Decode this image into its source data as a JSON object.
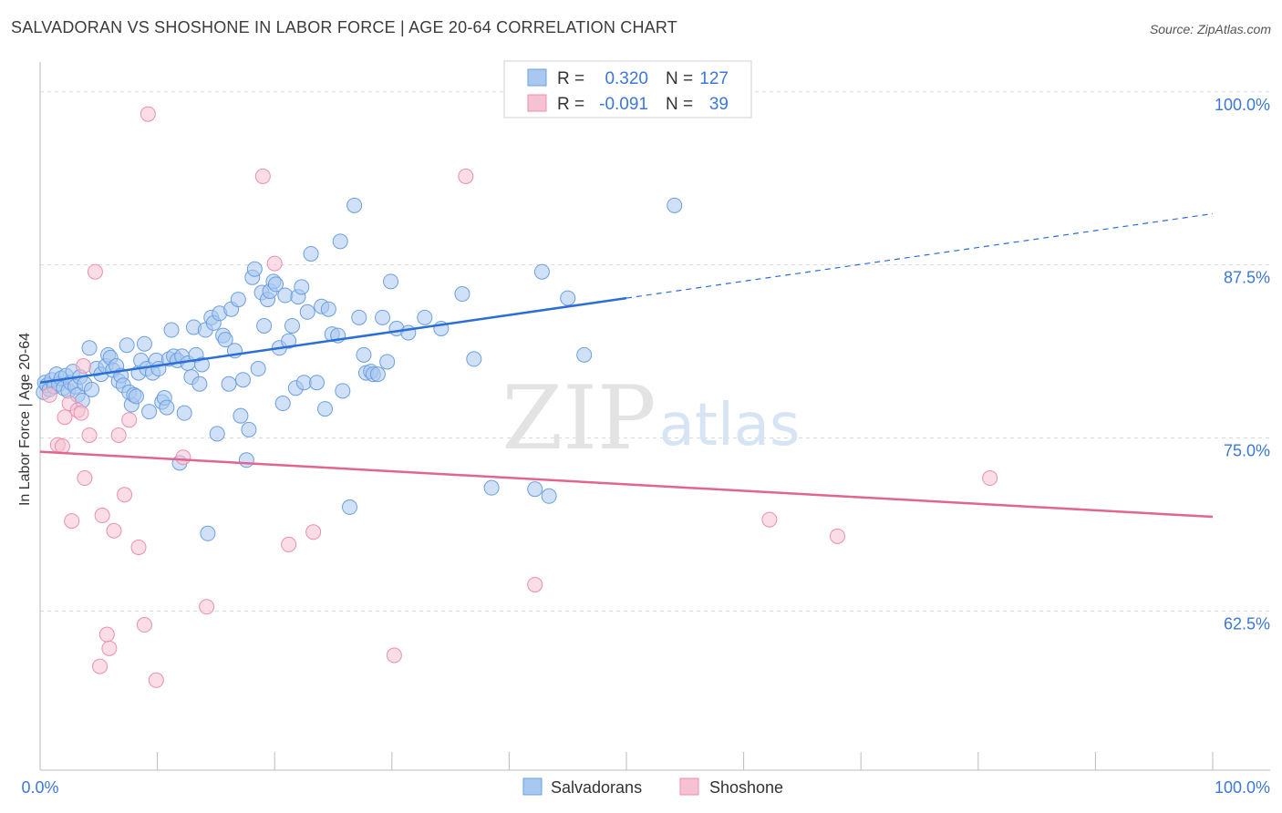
{
  "title": "SALVADORAN VS SHOSHONE IN LABOR FORCE | AGE 20-64 CORRELATION CHART",
  "source": "Source: ZipAtlas.com",
  "watermark": {
    "zip": "ZIP",
    "atlas": "atlas"
  },
  "colors": {
    "blue_fill": "#a9c8f0",
    "blue_stroke": "#6b9fe0",
    "blue_line": "#2a6ed6",
    "pink_fill": "#f6c1d2",
    "pink_stroke": "#ec8fad",
    "pink_line": "#e0658f",
    "tick_label": "#3b78d8",
    "grid": "#d9d9d9"
  },
  "legend_top": [
    {
      "r_label": "R =",
      "r_value": "0.320",
      "n_label": "N =",
      "n_value": "127"
    },
    {
      "r_label": "R =",
      "r_value": "-0.091",
      "n_label": "N =",
      "n_value": "39"
    }
  ],
  "chart_data": {
    "type": "scatter",
    "title": "SALVADORAN VS SHOSHONE IN LABOR FORCE | AGE 20-64 CORRELATION CHART",
    "xlabel": "",
    "ylabel": "In Labor Force | Age 20-64",
    "xlim": [
      0,
      100
    ],
    "ylim": [
      51,
      101.5
    ],
    "x_tick_labels": [
      "0.0%",
      "100.0%"
    ],
    "y_ticks": [
      62.5,
      75.0,
      87.5,
      100.0
    ],
    "y_tick_labels": [
      "62.5%",
      "75.0%",
      "87.5%",
      "100.0%"
    ],
    "grid": true,
    "legend_position": "bottom-center",
    "series": [
      {
        "name": "Salvadorans",
        "color": "#a9c8f0",
        "trend": {
          "x": [
            0,
            50
          ],
          "y": [
            79.0,
            85.1
          ],
          "dashed_to": [
            100,
            91.2
          ]
        },
        "points": [
          [
            0.3,
            78.3
          ],
          [
            0.4,
            79.0
          ],
          [
            0.6,
            78.8
          ],
          [
            0.8,
            78.5
          ],
          [
            1.0,
            79.2
          ],
          [
            1.2,
            78.7
          ],
          [
            1.4,
            79.6
          ],
          [
            1.6,
            78.9
          ],
          [
            1.8,
            79.3
          ],
          [
            2.0,
            78.6
          ],
          [
            2.2,
            79.5
          ],
          [
            2.4,
            78.4
          ],
          [
            2.6,
            79.0
          ],
          [
            2.8,
            79.8
          ],
          [
            3.0,
            78.7
          ],
          [
            3.2,
            78.1
          ],
          [
            3.4,
            79.4
          ],
          [
            3.6,
            77.7
          ],
          [
            3.8,
            78.9
          ],
          [
            4.2,
            81.5
          ],
          [
            4.4,
            78.5
          ],
          [
            4.8,
            80.0
          ],
          [
            5.2,
            79.6
          ],
          [
            5.6,
            80.2
          ],
          [
            5.8,
            81.0
          ],
          [
            6.0,
            80.8
          ],
          [
            6.2,
            79.9
          ],
          [
            6.5,
            80.2
          ],
          [
            6.7,
            79.1
          ],
          [
            6.9,
            79.5
          ],
          [
            7.1,
            78.8
          ],
          [
            7.4,
            81.7
          ],
          [
            7.6,
            78.3
          ],
          [
            7.8,
            77.4
          ],
          [
            8.0,
            78.1
          ],
          [
            8.2,
            78.0
          ],
          [
            8.4,
            79.7
          ],
          [
            8.6,
            80.6
          ],
          [
            8.9,
            81.8
          ],
          [
            9.1,
            80.0
          ],
          [
            9.3,
            76.9
          ],
          [
            9.6,
            79.7
          ],
          [
            9.9,
            80.6
          ],
          [
            10.1,
            80.0
          ],
          [
            10.4,
            77.6
          ],
          [
            10.6,
            77.9
          ],
          [
            10.8,
            77.2
          ],
          [
            11.0,
            80.7
          ],
          [
            11.2,
            82.8
          ],
          [
            11.4,
            80.9
          ],
          [
            11.7,
            80.6
          ],
          [
            11.9,
            73.2
          ],
          [
            12.1,
            80.9
          ],
          [
            12.3,
            76.8
          ],
          [
            12.6,
            80.4
          ],
          [
            12.9,
            79.4
          ],
          [
            13.1,
            83.0
          ],
          [
            13.3,
            81.0
          ],
          [
            13.6,
            78.9
          ],
          [
            13.8,
            80.3
          ],
          [
            14.1,
            82.8
          ],
          [
            14.3,
            68.1
          ],
          [
            14.6,
            83.7
          ],
          [
            14.8,
            83.3
          ],
          [
            15.1,
            75.3
          ],
          [
            15.3,
            84.0
          ],
          [
            15.6,
            82.4
          ],
          [
            15.8,
            82.1
          ],
          [
            16.1,
            78.9
          ],
          [
            16.3,
            84.3
          ],
          [
            16.6,
            81.3
          ],
          [
            16.9,
            85.0
          ],
          [
            17.1,
            76.6
          ],
          [
            17.3,
            79.2
          ],
          [
            17.6,
            73.4
          ],
          [
            17.8,
            75.6
          ],
          [
            18.1,
            86.6
          ],
          [
            18.3,
            87.2
          ],
          [
            18.6,
            80.0
          ],
          [
            18.9,
            85.5
          ],
          [
            19.1,
            83.1
          ],
          [
            19.4,
            85.0
          ],
          [
            19.6,
            85.6
          ],
          [
            19.9,
            86.3
          ],
          [
            20.1,
            86.1
          ],
          [
            20.4,
            81.5
          ],
          [
            20.7,
            77.5
          ],
          [
            20.9,
            85.3
          ],
          [
            21.2,
            82.0
          ],
          [
            21.5,
            83.1
          ],
          [
            21.8,
            78.6
          ],
          [
            22.0,
            85.2
          ],
          [
            22.3,
            85.9
          ],
          [
            22.5,
            79.0
          ],
          [
            22.8,
            84.1
          ],
          [
            23.1,
            88.3
          ],
          [
            23.6,
            79.0
          ],
          [
            24.0,
            84.5
          ],
          [
            24.3,
            77.1
          ],
          [
            24.6,
            84.3
          ],
          [
            24.9,
            82.5
          ],
          [
            25.4,
            82.4
          ],
          [
            25.6,
            89.2
          ],
          [
            25.8,
            78.4
          ],
          [
            26.4,
            70.0
          ],
          [
            26.8,
            91.8
          ],
          [
            27.2,
            83.7
          ],
          [
            27.6,
            81.0
          ],
          [
            27.8,
            79.7
          ],
          [
            28.2,
            79.8
          ],
          [
            28.4,
            79.6
          ],
          [
            28.8,
            79.6
          ],
          [
            29.2,
            83.7
          ],
          [
            29.6,
            80.5
          ],
          [
            29.9,
            86.3
          ],
          [
            30.4,
            82.9
          ],
          [
            31.4,
            82.6
          ],
          [
            32.8,
            83.7
          ],
          [
            34.2,
            82.9
          ],
          [
            36.0,
            85.4
          ],
          [
            37.0,
            80.7
          ],
          [
            38.5,
            71.4
          ],
          [
            42.2,
            71.3
          ],
          [
            42.8,
            87.0
          ],
          [
            43.4,
            70.8
          ],
          [
            45.0,
            85.1
          ],
          [
            46.4,
            81.0
          ],
          [
            54.1,
            91.8
          ]
        ]
      },
      {
        "name": "Shoshone",
        "color": "#f6c1d2",
        "trend": {
          "x": [
            0,
            100
          ],
          "y": [
            74.0,
            69.3
          ]
        },
        "points": [
          [
            0.8,
            78.1
          ],
          [
            1.5,
            74.5
          ],
          [
            1.9,
            74.4
          ],
          [
            2.1,
            76.5
          ],
          [
            2.5,
            77.5
          ],
          [
            2.7,
            69.0
          ],
          [
            3.2,
            77.0
          ],
          [
            3.5,
            76.8
          ],
          [
            3.7,
            80.2
          ],
          [
            3.8,
            72.1
          ],
          [
            4.2,
            75.2
          ],
          [
            4.7,
            87.0
          ],
          [
            5.1,
            58.5
          ],
          [
            5.3,
            69.4
          ],
          [
            5.7,
            60.8
          ],
          [
            5.9,
            59.8
          ],
          [
            6.3,
            68.3
          ],
          [
            6.7,
            75.2
          ],
          [
            7.2,
            70.9
          ],
          [
            7.6,
            76.3
          ],
          [
            8.4,
            67.1
          ],
          [
            8.9,
            61.5
          ],
          [
            9.2,
            98.4
          ],
          [
            9.9,
            57.5
          ],
          [
            12.2,
            73.6
          ],
          [
            14.2,
            62.8
          ],
          [
            19.0,
            93.9
          ],
          [
            20.0,
            87.6
          ],
          [
            21.2,
            67.3
          ],
          [
            23.3,
            68.2
          ],
          [
            30.2,
            59.3
          ],
          [
            36.3,
            93.9
          ],
          [
            42.2,
            64.4
          ],
          [
            62.2,
            69.1
          ],
          [
            68.0,
            67.9
          ],
          [
            81.0,
            72.1
          ]
        ]
      }
    ]
  }
}
